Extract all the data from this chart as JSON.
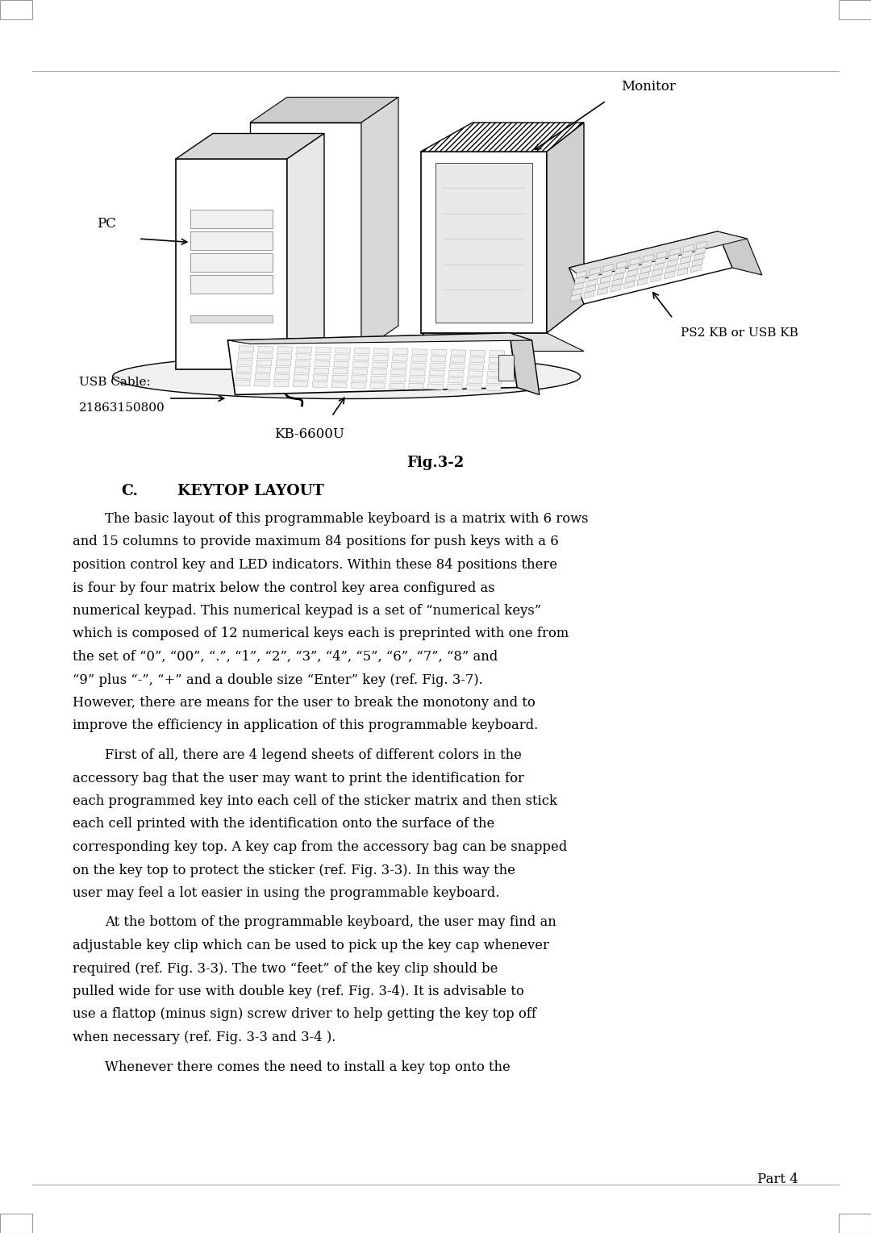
{
  "bg_color": "#ffffff",
  "page_width": 10.8,
  "page_height": 15.29,
  "fig_caption": "Fig.3-2",
  "section_heading_c": "C.",
  "section_heading_text": "KEYTOP LAYOUT",
  "paragraph1": "The basic layout of this programmable keyboard is a matrix with 6 rows and 15 columns to provide maximum 84 positions for push keys with a 6 position control key and LED indicators. Within these 84 positions there is four by four matrix below the control key area configured as numerical keypad. This numerical keypad is a set of “numerical keys” which is composed of 12 numerical keys each is preprinted with one from the set of “0”, “00”, “.”, “1”, “2”, “3”, “4”, “5”, “6”, “7”, “8” and “9” plus “-”, “+” and a double size “Enter” key (ref. Fig. 3-7). However, there are means for the user to break the monotony and to improve the efficiency in application of this programmable keyboard.",
  "paragraph2": "First of all, there are 4 legend sheets of different colors in the accessory bag that the user may want to print the identification for each programmed key into each cell of the sticker matrix and then stick each cell printed with the identification onto the surface of the corresponding key top. A key cap from the accessory bag can be snapped on the key top to protect the sticker (ref. Fig. 3-3). In this way the user may feel a lot easier in using the programmable keyboard.",
  "paragraph3": "At the bottom of the programmable keyboard, the user may find an adjustable key clip which can be used to pick up the key cap whenever required (ref. Fig. 3-3). The two “feet” of the key clip should be pulled wide for use with double key (ref. Fig. 3-4). It is advisable to use a flattop (minus sign) screw driver to help getting the key top off when necessary (ref. Fig. 3-3 and 3-4 ).",
  "paragraph4": "Whenever there comes the need to install a key top onto the",
  "page_number": "Part 4",
  "label_monitor": "Monitor",
  "label_pc": "PC",
  "label_usb1": "USB Cable:",
  "label_usb2": "21863150800",
  "label_kb6600u": "KB-6600U",
  "label_ps2": "PS2 KB or USB KB"
}
